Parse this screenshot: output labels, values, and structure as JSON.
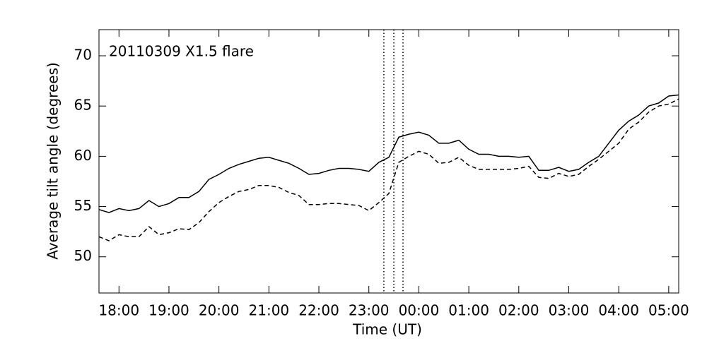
{
  "chart_data": {
    "type": "line",
    "annotation": "20110309 X1.5 flare",
    "xlabel": "Time (UT)",
    "ylabel": "Average tilt angle (degrees)",
    "x": [
      "17:36",
      "17:48",
      "18:00",
      "18:12",
      "18:24",
      "18:36",
      "18:48",
      "19:00",
      "19:12",
      "19:24",
      "19:36",
      "19:48",
      "20:00",
      "20:12",
      "20:24",
      "20:36",
      "20:48",
      "21:00",
      "21:12",
      "21:24",
      "21:36",
      "21:48",
      "22:00",
      "22:12",
      "22:24",
      "22:36",
      "22:48",
      "23:00",
      "23:12",
      "23:24",
      "23:36",
      "23:48",
      "00:00",
      "00:12",
      "00:24",
      "00:36",
      "00:48",
      "01:00",
      "01:12",
      "01:24",
      "01:36",
      "01:48",
      "02:00",
      "02:12",
      "02:24",
      "02:36",
      "02:48",
      "03:00",
      "03:12",
      "03:24",
      "03:36",
      "03:48",
      "04:00",
      "04:12",
      "04:24",
      "04:36",
      "04:48",
      "05:00",
      "05:12"
    ],
    "series": [
      {
        "color": "#000000",
        "line_style": "solid",
        "values": [
          54.7,
          54.4,
          54.8,
          54.6,
          54.8,
          55.6,
          55.0,
          55.3,
          55.9,
          55.9,
          56.5,
          57.7,
          58.2,
          58.8,
          59.2,
          59.5,
          59.8,
          59.9,
          59.6,
          59.3,
          58.8,
          58.2,
          58.3,
          58.6,
          58.8,
          58.8,
          58.7,
          58.5,
          59.4,
          59.9,
          61.9,
          62.2,
          62.4,
          62.1,
          61.3,
          61.3,
          61.6,
          60.7,
          60.2,
          60.2,
          60.0,
          60.0,
          59.9,
          60.0,
          58.6,
          58.6,
          58.9,
          58.5,
          58.7,
          59.4,
          60.0,
          61.3,
          62.6,
          63.5,
          64.1,
          65.0,
          65.3,
          66.0,
          66.1
        ]
      },
      {
        "color": "#000000",
        "line_style": "dashed",
        "values": [
          52.0,
          51.6,
          52.2,
          52.0,
          52.0,
          53.0,
          52.2,
          52.4,
          52.8,
          52.7,
          53.4,
          54.5,
          55.4,
          56.0,
          56.5,
          56.7,
          57.1,
          57.1,
          56.9,
          56.4,
          56.1,
          55.2,
          55.2,
          55.3,
          55.3,
          55.2,
          55.1,
          54.6,
          55.4,
          56.3,
          59.4,
          60.0,
          60.5,
          60.2,
          59.3,
          59.4,
          59.9,
          59.1,
          58.7,
          58.7,
          58.7,
          58.7,
          58.8,
          59.0,
          57.9,
          57.8,
          58.3,
          58.0,
          58.2,
          59.0,
          59.7,
          60.5,
          61.3,
          62.7,
          63.4,
          64.4,
          65.0,
          65.2,
          65.7
        ]
      }
    ],
    "vlines": [
      "23:18",
      "23:30",
      "23:41"
    ],
    "xlim": [
      "17:36",
      "05:12"
    ],
    "xticks": [
      "18:00",
      "19:00",
      "20:00",
      "21:00",
      "22:00",
      "23:00",
      "00:00",
      "01:00",
      "02:00",
      "03:00",
      "04:00",
      "05:00"
    ],
    "ylim": [
      46.4,
      72.6
    ],
    "yticks": [
      50,
      55,
      60,
      65,
      70
    ]
  }
}
